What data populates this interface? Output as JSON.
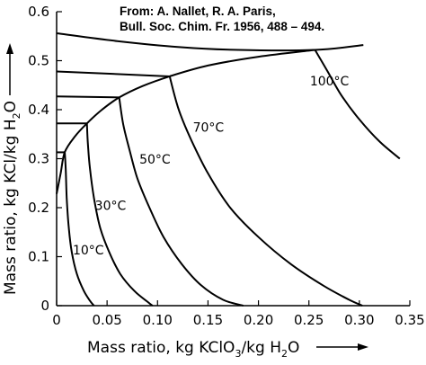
{
  "source": {
    "line1": "From: A. Nallet, R. A. Paris,",
    "line2": "Bull. Soc. Chim. Fr.  1956, 488 – 494."
  },
  "chart_data": {
    "type": "line",
    "x_axis": {
      "label_pre": "Mass ratio, kg KClO",
      "label_sub": "3",
      "label_post": "/kg H",
      "label_sub2": "2",
      "label_post2": "O",
      "range": [
        0,
        0.35
      ],
      "ticks": [
        "0",
        "0.05",
        "0.10",
        "0.15",
        "0.20",
        "0.25",
        "0.30",
        "0.35"
      ]
    },
    "y_axis": {
      "label_pre": "Mass ratio, kg KCl/kg H",
      "label_sub": "2",
      "label_post": "O",
      "range": [
        0,
        0.6
      ],
      "ticks": [
        "0",
        "0.1",
        "0.2",
        "0.3",
        "0.4",
        "0.5",
        "0.6"
      ]
    },
    "grid": false,
    "series": [
      {
        "name": "10°C",
        "points": [
          [
            0.008,
            0.315
          ],
          [
            0.009,
            0.28
          ],
          [
            0.01,
            0.22
          ],
          [
            0.012,
            0.16
          ],
          [
            0.015,
            0.11
          ],
          [
            0.02,
            0.065
          ],
          [
            0.027,
            0.03
          ],
          [
            0.033,
            0.01
          ],
          [
            0.037,
            0.0
          ]
        ]
      },
      {
        "name": "30°C",
        "points": [
          [
            0.03,
            0.372
          ],
          [
            0.031,
            0.33
          ],
          [
            0.033,
            0.28
          ],
          [
            0.037,
            0.22
          ],
          [
            0.043,
            0.16
          ],
          [
            0.052,
            0.11
          ],
          [
            0.063,
            0.065
          ],
          [
            0.077,
            0.03
          ],
          [
            0.09,
            0.008
          ],
          [
            0.095,
            0.0
          ]
        ]
      },
      {
        "name": "50°C",
        "points": [
          [
            0.062,
            0.425
          ],
          [
            0.066,
            0.37
          ],
          [
            0.072,
            0.32
          ],
          [
            0.08,
            0.26
          ],
          [
            0.092,
            0.2
          ],
          [
            0.106,
            0.14
          ],
          [
            0.124,
            0.085
          ],
          [
            0.143,
            0.042
          ],
          [
            0.165,
            0.012
          ],
          [
            0.185,
            0.0
          ]
        ]
      },
      {
        "name": "70°C",
        "points": [
          [
            0.112,
            0.468
          ],
          [
            0.121,
            0.4
          ],
          [
            0.133,
            0.34
          ],
          [
            0.15,
            0.27
          ],
          [
            0.172,
            0.2
          ],
          [
            0.2,
            0.14
          ],
          [
            0.232,
            0.085
          ],
          [
            0.265,
            0.04
          ],
          [
            0.29,
            0.012
          ],
          [
            0.303,
            0.0
          ]
        ]
      },
      {
        "name": "100°C",
        "points": [
          [
            0.256,
            0.522
          ],
          [
            0.268,
            0.48
          ],
          [
            0.282,
            0.43
          ],
          [
            0.3,
            0.38
          ],
          [
            0.32,
            0.335
          ],
          [
            0.34,
            0.3
          ]
        ]
      }
    ],
    "kcl_saturation": {
      "points": [
        [
          0,
          0.556
        ],
        [
          0.06,
          0.54
        ],
        [
          0.12,
          0.528
        ],
        [
          0.18,
          0.522
        ],
        [
          0.256,
          0.522
        ],
        [
          0.304,
          0.532
        ]
      ],
      "lines_to_junctions": [
        {
          "from": [
            0,
            0.478
          ],
          "to": [
            0.112,
            0.468
          ]
        },
        {
          "from": [
            0,
            0.427
          ],
          "to": [
            0.062,
            0.425
          ]
        },
        {
          "from": [
            0,
            0.372
          ],
          "to": [
            0.03,
            0.372
          ]
        },
        {
          "from": [
            0,
            0.313
          ],
          "to": [
            0.008,
            0.313
          ]
        }
      ]
    },
    "kclo3_saturation": {
      "points": [
        [
          0,
          0.228
        ],
        [
          0.004,
          0.27
        ],
        [
          0.008,
          0.313
        ],
        [
          0.018,
          0.345
        ],
        [
          0.03,
          0.372
        ],
        [
          0.045,
          0.4
        ],
        [
          0.062,
          0.425
        ],
        [
          0.085,
          0.448
        ],
        [
          0.112,
          0.468
        ],
        [
          0.15,
          0.49
        ],
        [
          0.2,
          0.508
        ],
        [
          0.256,
          0.522
        ]
      ]
    },
    "labels": [
      {
        "text": "10°C",
        "x": 0.016,
        "y": 0.105
      },
      {
        "text": "30°C",
        "x": 0.038,
        "y": 0.195
      },
      {
        "text": "50°C",
        "x": 0.082,
        "y": 0.29
      },
      {
        "text": "70°C",
        "x": 0.135,
        "y": 0.355
      },
      {
        "text": "100°C",
        "x": 0.251,
        "y": 0.45
      }
    ]
  }
}
